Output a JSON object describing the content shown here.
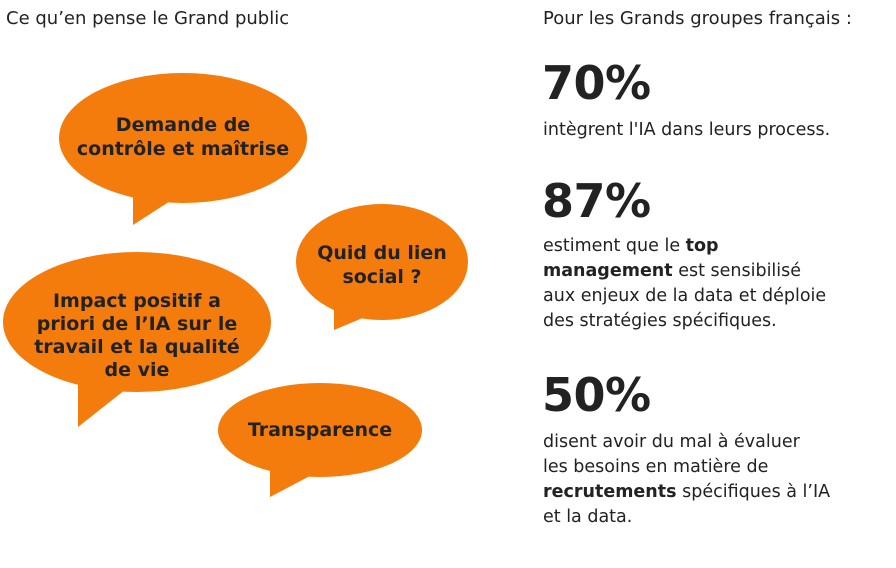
{
  "left_heading": "Ce qu’en pense le Grand public",
  "right_heading": "Pour les Grands groupes français :",
  "bubbles": {
    "color": "#f47c0c",
    "b1": {
      "line1": "Demande de",
      "line2": "contrôle et maîtrise"
    },
    "b2": {
      "line1": "Quid du lien",
      "line2": "social ?"
    },
    "b3": {
      "line1": "Impact positif a",
      "line2": "priori de l’IA sur le",
      "line3": "travail et la qualité",
      "line4": "de vie"
    },
    "b4": {
      "line1": "Transparence"
    }
  },
  "stats": [
    {
      "value": "70%",
      "text": "intègrent l'IA dans leurs process."
    },
    {
      "value": "87%",
      "t1": "estiment que le ",
      "b1": "top",
      "b2": "management",
      "t2": " est sensibilisé",
      "t3": "aux enjeux de la data et déploie",
      "t4": "des stratégies spécifiques."
    },
    {
      "value": "50%",
      "t1": "disent avoir du mal à évaluer",
      "t2": "les besoins en matière de",
      "b1": "recrutements",
      "t3": " spécifiques à l’IA",
      "t4": "et la data."
    }
  ]
}
